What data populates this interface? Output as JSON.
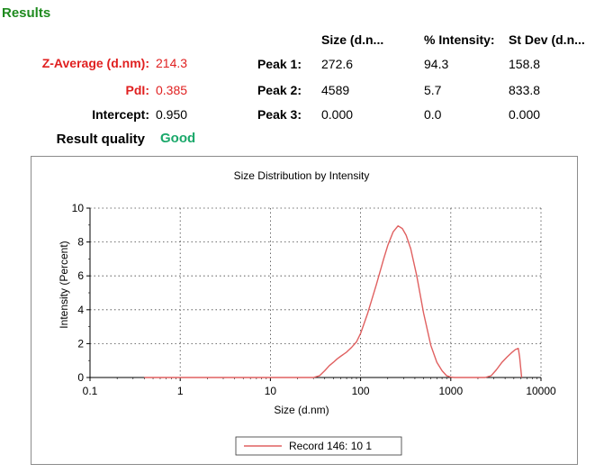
{
  "results": {
    "title": "Results",
    "z_average": {
      "label": "Z-Average (d.nm):",
      "value": "214.3"
    },
    "pdi": {
      "label": "PdI:",
      "value": "0.385"
    },
    "intercept": {
      "label": "Intercept:",
      "value": "0.950"
    },
    "quality": {
      "label": "Result quality",
      "value": "Good"
    }
  },
  "peaks_table": {
    "headers": [
      "Size (d.n...",
      "% Intensity:",
      "St Dev (d.n..."
    ],
    "rows": [
      {
        "label": "Peak 1:",
        "size": "272.6",
        "intensity": "94.3",
        "stdev": "158.8"
      },
      {
        "label": "Peak 2:",
        "size": "4589",
        "intensity": "5.7",
        "stdev": "833.8"
      },
      {
        "label": "Peak 3:",
        "size": "0.000",
        "intensity": "0.0",
        "stdev": "0.000"
      }
    ]
  },
  "colors": {
    "title_green": "#1e8a1e",
    "label_red": "#e02020",
    "good": "#1aa86a",
    "series": "#e06060"
  },
  "chart_data": {
    "type": "line",
    "title": "Size Distribution by Intensity",
    "xlabel": "Size (d.nm)",
    "ylabel": "Intensity (Percent)",
    "x_scale": "log",
    "xlim": [
      0.1,
      10000
    ],
    "ylim": [
      0,
      10
    ],
    "x_ticks": [
      "0.1",
      "1",
      "10",
      "100",
      "1000",
      "10000"
    ],
    "y_ticks": [
      "0",
      "2",
      "4",
      "6",
      "8",
      "10"
    ],
    "grid": true,
    "legend_position": "bottom",
    "series": [
      {
        "name": "Record 146: 10 1",
        "x": [
          0.4,
          1,
          5,
          10,
          20,
          30,
          35,
          40,
          45,
          50,
          55,
          60,
          70,
          80,
          90,
          100,
          120,
          150,
          180,
          200,
          230,
          260,
          290,
          320,
          360,
          420,
          500,
          600,
          700,
          800,
          900,
          1000,
          1100,
          1500,
          2000,
          2400,
          2800,
          3200,
          3700,
          4200,
          4700,
          5200,
          5600,
          5800,
          6100
        ],
        "y": [
          0,
          0,
          0,
          0,
          0,
          0,
          0.1,
          0.4,
          0.7,
          0.9,
          1.1,
          1.25,
          1.5,
          1.8,
          2.1,
          2.6,
          3.8,
          5.5,
          7.0,
          7.8,
          8.6,
          8.95,
          8.8,
          8.4,
          7.6,
          6.0,
          3.8,
          1.9,
          0.9,
          0.4,
          0.1,
          0.02,
          0,
          0,
          0,
          0,
          0.1,
          0.45,
          0.9,
          1.2,
          1.45,
          1.65,
          1.72,
          1.2,
          0
        ]
      }
    ]
  }
}
